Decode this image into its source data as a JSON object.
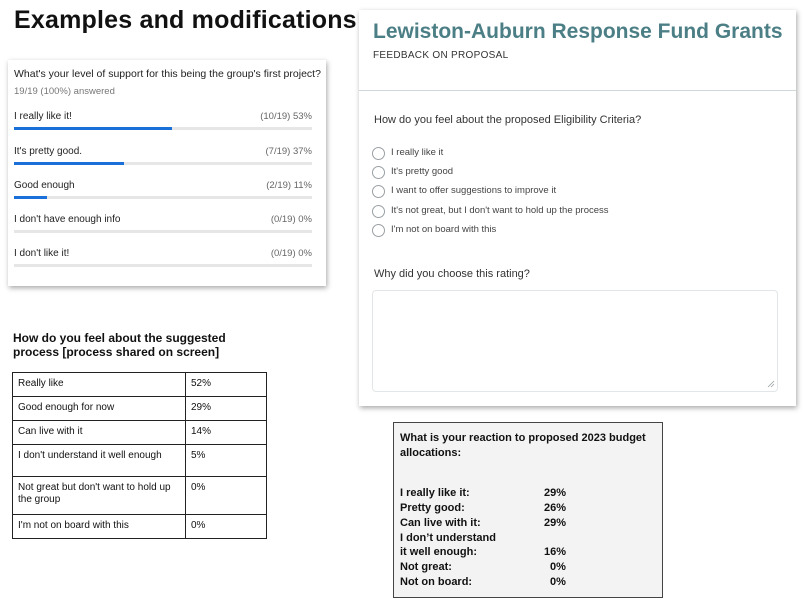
{
  "heading": "Examples and modifications:",
  "poll": {
    "question": "What's your level of support for this being the group's first project?",
    "answered": "19/19 (100%) answered",
    "options": [
      {
        "label": "I really like it!",
        "stat": "(10/19) 53%",
        "fraction": 0.53
      },
      {
        "label": "It's pretty good.",
        "stat": "(7/19) 37%",
        "fraction": 0.37
      },
      {
        "label": "Good enough",
        "stat": "(2/19) 11%",
        "fraction": 0.11
      },
      {
        "label": "I don't have enough info",
        "stat": "(0/19) 0%",
        "fraction": 0
      },
      {
        "label": "I don't like it!",
        "stat": "(0/19) 0%",
        "fraction": 0
      }
    ],
    "bar_color": "#1a6fd8"
  },
  "form": {
    "title": "Lewiston-Auburn Response Fund Grants",
    "subtitle": "FEEDBACK ON PROPOSAL",
    "question": "How do you feel about the proposed Eligibility Criteria?",
    "options": [
      "I really like it",
      "It's pretty good",
      "I want to offer suggestions to improve it",
      "It's not great, but I don't want to hold up the process",
      "I'm not on board with this"
    ],
    "rating_question": "Why did you choose this rating?",
    "rating_value": "",
    "title_color": "#4b7f85"
  },
  "process": {
    "heading": "How do you feel about the suggested process [process shared on screen]",
    "rows": [
      {
        "label": "Really like",
        "value": "52%"
      },
      {
        "label": "Good enough for now",
        "value": "29%"
      },
      {
        "label": "Can live with it",
        "value": "14%"
      },
      {
        "label": "I don't understand it well enough",
        "value": "5%"
      },
      {
        "label": "Not great but don't want to hold up the group",
        "value": "0%"
      },
      {
        "label": "I'm not on board with this",
        "value": "0%"
      }
    ]
  },
  "budget": {
    "heading": "What is your reaction to proposed 2023 budget allocations:",
    "rows": [
      {
        "label": "I really like it:",
        "value": "29%"
      },
      {
        "label": "Pretty good:",
        "value": "26%"
      },
      {
        "label": "Can live with it:",
        "value": "29%"
      },
      {
        "label": "I don’t understand",
        "value": ""
      },
      {
        "label": "it well enough:",
        "value": "16%"
      },
      {
        "label": "Not great:",
        "value": "0%"
      },
      {
        "label": "Not on board:",
        "value": "0%"
      }
    ]
  }
}
